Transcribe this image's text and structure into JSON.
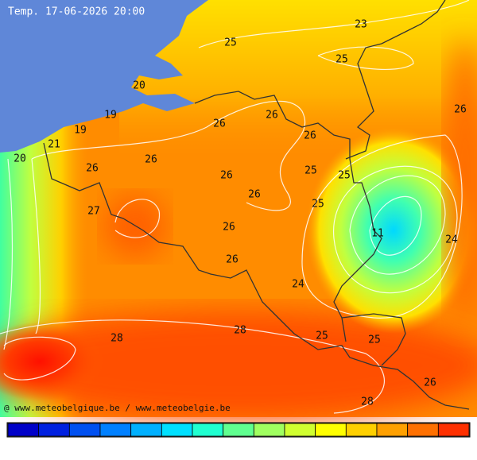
{
  "title": "Temp. 17-06-2026 20:00",
  "footer": "@ www.meteobelgique.be / www.meteobelgie.be",
  "labels": [
    23,
    25,
    25,
    20,
    26,
    19,
    26,
    26,
    19,
    26,
    21,
    20,
    26,
    26,
    25,
    26,
    25,
    26,
    25,
    27,
    26,
    11,
    24,
    26,
    24,
    28,
    28,
    25,
    25,
    26,
    28
  ],
  "scale_colors": [
    "#0000c8",
    "#0020e0",
    "#0050f0",
    "#0080ff",
    "#00b0ff",
    "#00e0ff",
    "#20ffd0",
    "#60ff90",
    "#a0ff60",
    "#d0ff30",
    "#ffff00",
    "#ffd000",
    "#ffa000",
    "#ff7000",
    "#ff3000"
  ]
}
